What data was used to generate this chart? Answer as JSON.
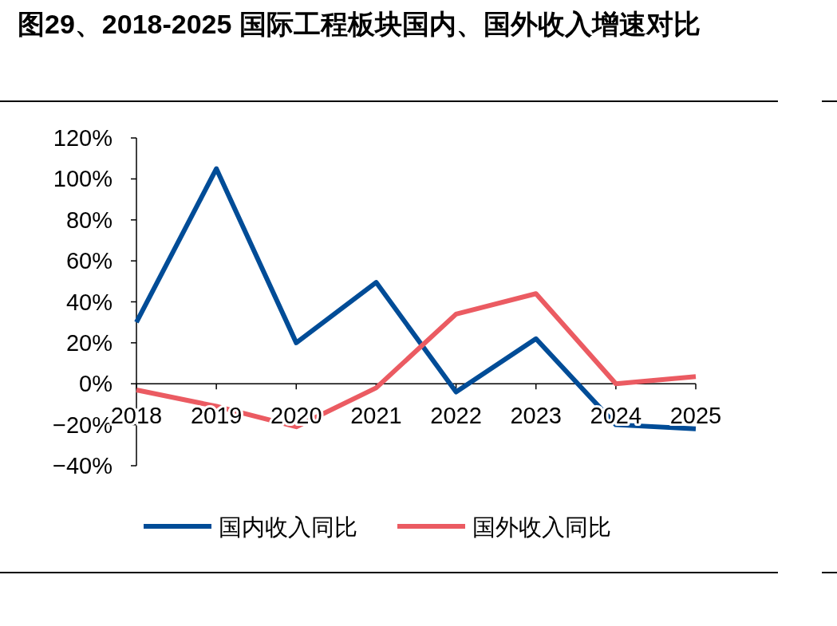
{
  "chart_data": {
    "type": "line",
    "title": "图29、2018-2025 国际工程板块国内、国外收入增速对比",
    "categories": [
      "2018",
      "2019",
      "2020",
      "2021",
      "2022",
      "2023",
      "2024",
      "2025"
    ],
    "series": [
      {
        "name": "国内收入同比",
        "color": "#004c97",
        "values": [
          30,
          105,
          20,
          49.5,
          -4,
          22,
          -20,
          -22
        ]
      },
      {
        "name": "国外收入同比",
        "color": "#eb5b62",
        "values": [
          -3,
          -11,
          -21,
          -2,
          34,
          44,
          0,
          3.5
        ]
      }
    ],
    "ylim": [
      -40,
      120
    ],
    "yticks": [
      {
        "value": -40,
        "label": "−40%"
      },
      {
        "value": -20,
        "label": "−20%"
      },
      {
        "value": 0,
        "label": "0%"
      },
      {
        "value": 20,
        "label": "20%"
      },
      {
        "value": 40,
        "label": "40%"
      },
      {
        "value": 60,
        "label": "60%"
      },
      {
        "value": 80,
        "label": "80%"
      },
      {
        "value": 100,
        "label": "100%"
      },
      {
        "value": 120,
        "label": "120%"
      }
    ],
    "legend": "bottom",
    "marker": "none",
    "line_style": "solid",
    "grid": false
  }
}
